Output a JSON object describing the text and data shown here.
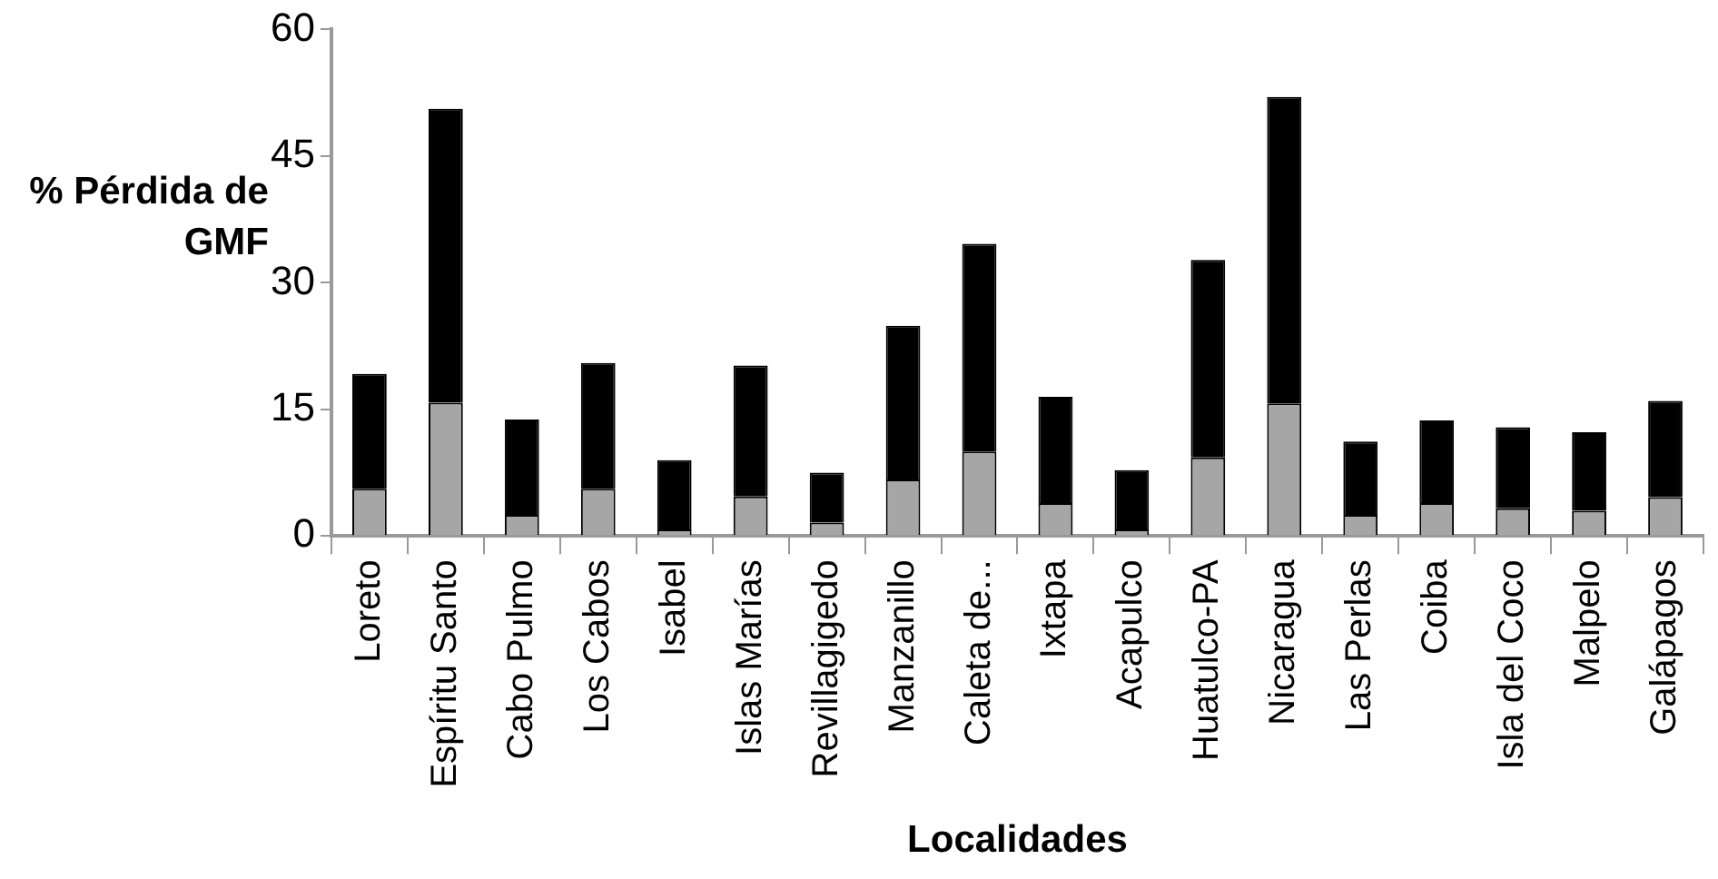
{
  "chart_data": {
    "type": "bar",
    "stacked": true,
    "xlabel": "Localidades",
    "ylabel": "% Pérdida de GMF",
    "categories": [
      "Loreto",
      "Espíritu Santo",
      "Cabo Pulmo",
      "Los Cabos",
      "Isabel",
      "Islas Marías",
      "Revillagigedo",
      "Manzanillo",
      "Caleta de...",
      "Ixtapa",
      "Acapulco",
      "Huatulco-PA",
      "Nicaragua",
      "Las Perlas",
      "Coiba",
      "Isla del Coco",
      "Malpelo",
      "Galápagos"
    ],
    "series": [
      {
        "color": "#a6a6a6",
        "values": [
          5.6,
          15.8,
          2.5,
          5.6,
          0.8,
          4.7,
          1.6,
          6.7,
          10.0,
          3.9,
          0.8,
          9.3,
          15.7,
          2.5,
          3.9,
          3.3,
          3.0,
          4.6
        ]
      },
      {
        "color": "#000000",
        "values": [
          13.6,
          34.8,
          11.3,
          14.9,
          8.2,
          15.5,
          5.9,
          18.2,
          24.6,
          12.6,
          7.0,
          23.4,
          36.3,
          8.7,
          9.8,
          9.6,
          9.3,
          11.4
        ]
      }
    ],
    "ylim": [
      0,
      60
    ],
    "yticks": [
      0,
      15,
      30,
      45,
      60
    ],
    "grid": false,
    "legend": false
  }
}
